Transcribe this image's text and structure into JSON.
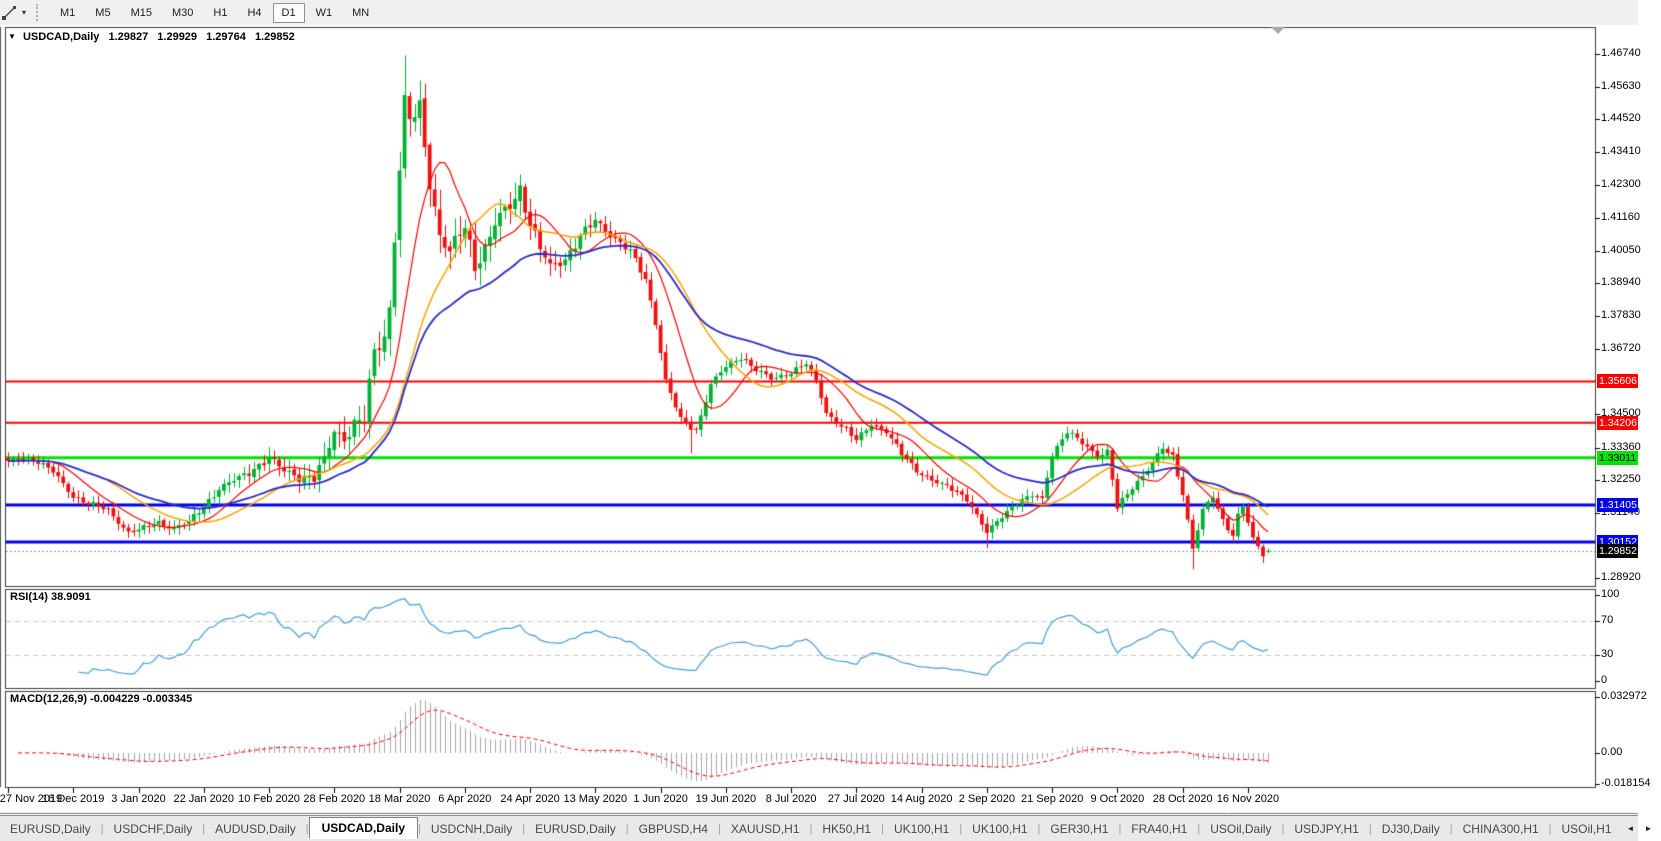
{
  "icons": {
    "collapse": "▼",
    "dropdown": "▾",
    "scroll_left": "◄",
    "scroll_right": "►",
    "tab_divider": "|"
  },
  "toolbar": {
    "timeframes": [
      {
        "label": "M1",
        "active": false
      },
      {
        "label": "M5",
        "active": false
      },
      {
        "label": "M15",
        "active": false
      },
      {
        "label": "M30",
        "active": false
      },
      {
        "label": "H1",
        "active": false
      },
      {
        "label": "H4",
        "active": false
      },
      {
        "label": "D1",
        "active": true
      },
      {
        "label": "W1",
        "active": false
      },
      {
        "label": "MN",
        "active": false
      }
    ]
  },
  "chart": {
    "title": {
      "symbol": "USDCAD,Daily",
      "open": "1.29827",
      "high": "1.29929",
      "low": "1.29764",
      "close": "1.29852"
    }
  },
  "rsi": {
    "label": "RSI(14) 38.9091"
  },
  "macd": {
    "label": "MACD(12,26,9) -0.004229 -0.003345"
  },
  "tabs": [
    {
      "label": "EURUSD,Daily",
      "active": false
    },
    {
      "label": "USDCHF,Daily",
      "active": false
    },
    {
      "label": "AUDUSD,Daily",
      "active": false
    },
    {
      "label": "USDCAD,Daily",
      "active": true
    },
    {
      "label": "USDCNH,Daily",
      "active": false
    },
    {
      "label": "EURUSD,Daily",
      "active": false
    },
    {
      "label": "GBPUSD,H4",
      "active": false
    },
    {
      "label": "XAUUSD,H1",
      "active": false
    },
    {
      "label": "HK50,H1",
      "active": false
    },
    {
      "label": "UK100,H1",
      "active": false
    },
    {
      "label": "UK100,H1",
      "active": false
    },
    {
      "label": "GER30,H1",
      "active": false
    },
    {
      "label": "FRA40,H1",
      "active": false
    },
    {
      "label": "USOil,Daily",
      "active": false
    },
    {
      "label": "USDJPY,H1",
      "active": false
    },
    {
      "label": "DJ30,Daily",
      "active": false
    },
    {
      "label": "CHINA300,H1",
      "active": false
    },
    {
      "label": "USOil,H1",
      "active": false
    }
  ],
  "chart_data": {
    "type": "candlestick",
    "symbol": "USDCAD",
    "period": "Daily",
    "visible_bars": 252,
    "current_bar": {
      "open": 1.29827,
      "high": 1.29929,
      "low": 1.29764,
      "close": 1.29852
    },
    "colors": {
      "bull": "#00b232",
      "bear": "#ef1010",
      "background": "#ffffff",
      "border": "#3c3c3c",
      "rsi_line": "#4a9edb",
      "rsi_guide": "#c8c8c8",
      "macd_hist": "#a6a6a6",
      "macd_signal": "#ff0000",
      "current_price_line": "#9a9a9a"
    },
    "y_axis": {
      "tick_labels": [
        "1.46740",
        "1.45630",
        "1.44520",
        "1.43410",
        "1.42300",
        "1.41160",
        "1.40050",
        "1.38940",
        "1.37830",
        "1.36720",
        "1.34500",
        "1.33360",
        "1.32250",
        "1.31140",
        "1.28920"
      ]
    },
    "x_axis": {
      "tick_labels": [
        "27 Nov 2019",
        "16 Dec 2019",
        "3 Jan 2020",
        "22 Jan 2020",
        "10 Feb 2020",
        "28 Feb 2020",
        "18 Mar 2020",
        "6 Apr 2020",
        "24 Apr 2020",
        "13 May 2020",
        "1 Jun 2020",
        "19 Jun 2020",
        "8 Jul 2020",
        "27 Jul 2020",
        "14 Aug 2020",
        "2 Sep 2020",
        "21 Sep 2020",
        "9 Oct 2020",
        "28 Oct 2020",
        "16 Nov 2020"
      ],
      "tick_bar_indices": [
        0,
        13,
        26,
        39,
        52,
        65,
        78,
        91,
        104,
        117,
        130,
        143,
        156,
        169,
        182,
        195,
        208,
        221,
        234,
        247
      ]
    },
    "horizontal_lines": [
      {
        "price": 1.35606,
        "label": "1.35606",
        "color": "#ff0000",
        "label_bg": "#ff0000",
        "label_fg": "#ffffff",
        "width": 2
      },
      {
        "price": 1.34206,
        "label": "1.34206",
        "color": "#ff0000",
        "label_bg": "#ff0000",
        "label_fg": "#ffffff",
        "width": 2
      },
      {
        "price": 1.33011,
        "label": "1.33011",
        "color": "#00e400",
        "label_bg": "#00e400",
        "label_fg": "#000000",
        "width": 3
      },
      {
        "price": 1.31405,
        "label": "1.31405",
        "color": "#0000ee",
        "label_bg": "#0000ee",
        "label_fg": "#ffffff",
        "width": 3
      },
      {
        "price": 1.30152,
        "label": "1.30152",
        "color": "#0000ee",
        "label_bg": "#0000ee",
        "label_fg": "#ffffff",
        "width": 3
      }
    ],
    "current_price": {
      "value": 1.29852,
      "label": "1.29852",
      "label_bg": "#000000",
      "label_fg": "#ffffff"
    },
    "moving_averages": [
      {
        "period": 10,
        "method": "sma",
        "color": "#ff0000",
        "width": 1.2
      },
      {
        "period": 21,
        "method": "sma",
        "color": "#f7a400",
        "width": 1.5
      },
      {
        "period": 34,
        "method": "ema",
        "color": "#2b2bc8",
        "width": 1.8
      }
    ],
    "rsi": {
      "period": 14,
      "current": 38.9091,
      "scale_max": 100,
      "scale_min": 0,
      "guides": [
        70,
        30
      ],
      "axis_labels": [
        [
          "100",
          100
        ],
        [
          "70",
          70
        ],
        [
          "30",
          30
        ],
        [
          "0",
          0
        ]
      ]
    },
    "macd": {
      "fast": 12,
      "slow": 26,
      "signal_period": 9,
      "current_main": -0.004229,
      "current_signal": -0.003345,
      "axis_labels": [
        [
          "0.032972",
          0.032972
        ],
        [
          "0.00",
          0
        ],
        [
          "-0.018154",
          -0.018154
        ]
      ]
    },
    "close_waypoints": [
      [
        0,
        1.3285
      ],
      [
        3,
        1.3302
      ],
      [
        6,
        1.329
      ],
      [
        9,
        1.3252
      ],
      [
        13,
        1.317
      ],
      [
        16,
        1.3146
      ],
      [
        20,
        1.3122
      ],
      [
        24,
        1.3048
      ],
      [
        27,
        1.306
      ],
      [
        30,
        1.3082
      ],
      [
        33,
        1.3062
      ],
      [
        36,
        1.308
      ],
      [
        39,
        1.314
      ],
      [
        42,
        1.3195
      ],
      [
        46,
        1.3232
      ],
      [
        49,
        1.3266
      ],
      [
        52,
        1.3298
      ],
      [
        55,
        1.3256
      ],
      [
        58,
        1.324
      ],
      [
        61,
        1.323
      ],
      [
        63,
        1.329
      ],
      [
        65,
        1.3394
      ],
      [
        67,
        1.337
      ],
      [
        69,
        1.3414
      ],
      [
        71,
        1.3425
      ],
      [
        73,
        1.3662
      ],
      [
        75,
        1.3718
      ],
      [
        76,
        1.3815
      ],
      [
        78,
        1.4285
      ],
      [
        79,
        1.4505
      ],
      [
        80,
        1.4445
      ],
      [
        82,
        1.449
      ],
      [
        84,
        1.4245
      ],
      [
        86,
        1.406
      ],
      [
        88,
        1.3992
      ],
      [
        91,
        1.4092
      ],
      [
        93,
        1.396
      ],
      [
        95,
        1.4012
      ],
      [
        97,
        1.4092
      ],
      [
        100,
        1.4162
      ],
      [
        102,
        1.422
      ],
      [
        104,
        1.4096
      ],
      [
        106,
        1.401
      ],
      [
        108,
        1.3948
      ],
      [
        111,
        1.398
      ],
      [
        114,
        1.405
      ],
      [
        117,
        1.4108
      ],
      [
        120,
        1.4062
      ],
      [
        124,
        1.4
      ],
      [
        127,
        1.3908
      ],
      [
        129,
        1.3762
      ],
      [
        131,
        1.3562
      ],
      [
        134,
        1.343
      ],
      [
        137,
        1.3395
      ],
      [
        140,
        1.355
      ],
      [
        143,
        1.361
      ],
      [
        146,
        1.3645
      ],
      [
        149,
        1.36
      ],
      [
        152,
        1.3568
      ],
      [
        156,
        1.3594
      ],
      [
        159,
        1.362
      ],
      [
        161,
        1.3562
      ],
      [
        163,
        1.3455
      ],
      [
        166,
        1.341
      ],
      [
        169,
        1.336
      ],
      [
        172,
        1.3417
      ],
      [
        175,
        1.339
      ],
      [
        178,
        1.3312
      ],
      [
        181,
        1.326
      ],
      [
        184,
        1.3224
      ],
      [
        188,
        1.3194
      ],
      [
        191,
        1.3164
      ],
      [
        193,
        1.3104
      ],
      [
        195,
        1.3044
      ],
      [
        198,
        1.3104
      ],
      [
        201,
        1.315
      ],
      [
        204,
        1.317
      ],
      [
        206,
        1.316
      ],
      [
        208,
        1.3314
      ],
      [
        211,
        1.339
      ],
      [
        214,
        1.335
      ],
      [
        217,
        1.331
      ],
      [
        219,
        1.3324
      ],
      [
        221,
        1.313
      ],
      [
        224,
        1.32
      ],
      [
        227,
        1.3264
      ],
      [
        230,
        1.3332
      ],
      [
        232,
        1.3302
      ],
      [
        234,
        1.3182
      ],
      [
        236,
        1.2996
      ],
      [
        238,
        1.3122
      ],
      [
        240,
        1.3167
      ],
      [
        242,
        1.3087
      ],
      [
        244,
        1.3042
      ],
      [
        245,
        1.3107
      ],
      [
        246,
        1.3138
      ],
      [
        248,
        1.3022
      ],
      [
        250,
        1.297
      ],
      [
        251,
        1.29852
      ]
    ],
    "special_extremes": [
      {
        "index": 79,
        "high": 1.4669
      },
      {
        "index": 136,
        "low": 1.3316
      },
      {
        "index": 195,
        "low": 1.2994
      },
      {
        "index": 236,
        "low": 1.2922
      }
    ]
  }
}
